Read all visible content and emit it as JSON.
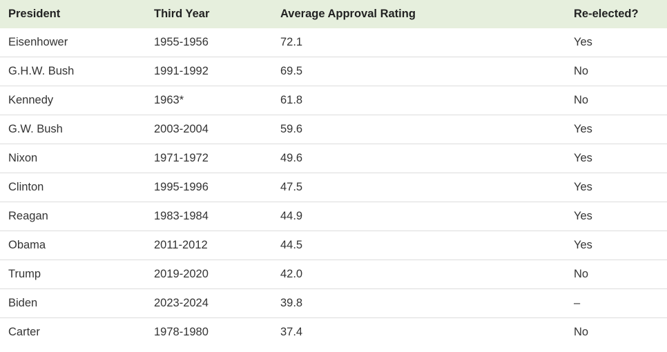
{
  "table": {
    "headers": [
      "President",
      "Third Year",
      "Average Approval Rating",
      "Re-elected?"
    ],
    "rows": [
      [
        "Eisenhower",
        "1955-1956",
        "72.1",
        "Yes"
      ],
      [
        "G.H.W. Bush",
        "1991-1992",
        "69.5",
        "No"
      ],
      [
        "Kennedy",
        "1963*",
        "61.8",
        "No"
      ],
      [
        "G.W. Bush",
        "2003-2004",
        "59.6",
        "Yes"
      ],
      [
        "Nixon",
        "1971-1972",
        "49.6",
        "Yes"
      ],
      [
        "Clinton",
        "1995-1996",
        "47.5",
        "Yes"
      ],
      [
        "Reagan",
        "1983-1984",
        "44.9",
        "Yes"
      ],
      [
        "Obama",
        "2011-2012",
        "44.5",
        "Yes"
      ],
      [
        "Trump",
        "2019-2020",
        "42.0",
        "No"
      ],
      [
        "Biden",
        "2023-2024",
        "39.8",
        "–"
      ],
      [
        "Carter",
        "1978-1980",
        "37.4",
        "No"
      ]
    ]
  },
  "colors": {
    "header_background": "#e6efdd",
    "row_divider": "#dcdcdc"
  }
}
